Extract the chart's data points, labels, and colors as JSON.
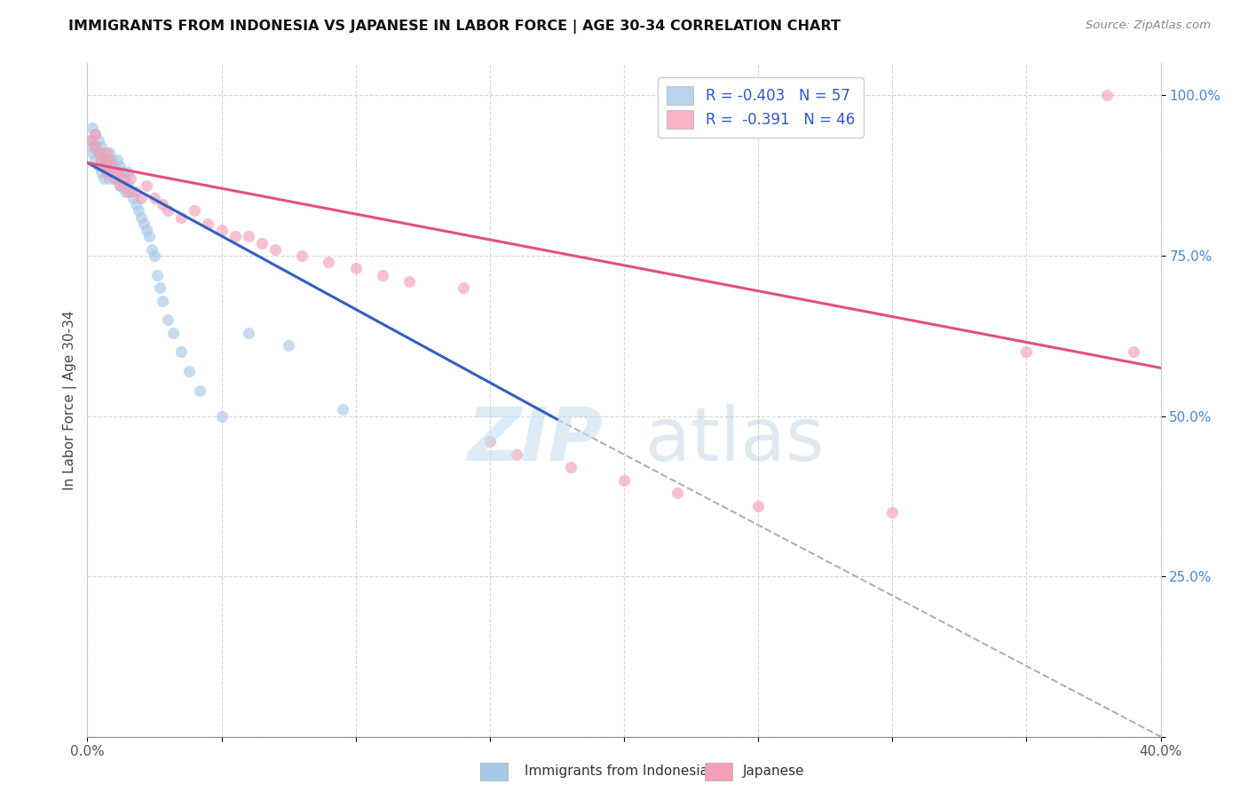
{
  "title": "IMMIGRANTS FROM INDONESIA VS JAPANESE IN LABOR FORCE | AGE 30-34 CORRELATION CHART",
  "source": "Source: ZipAtlas.com",
  "ylabel": "In Labor Force | Age 30-34",
  "xlim": [
    0.0,
    0.4
  ],
  "ylim": [
    0.0,
    1.05
  ],
  "R1": -0.403,
  "N1": 57,
  "R2": -0.391,
  "N2": 46,
  "color_blue": "#a8c8e8",
  "color_pink": "#f4a0b8",
  "line_color_blue": "#3060c0",
  "line_color_pink": "#e05080",
  "line_color_dashed": "#b0b0b0",
  "indonesia_x": [
    0.001,
    0.002,
    0.002,
    0.002,
    0.003,
    0.003,
    0.003,
    0.004,
    0.004,
    0.004,
    0.005,
    0.005,
    0.005,
    0.006,
    0.006,
    0.006,
    0.007,
    0.007,
    0.008,
    0.008,
    0.008,
    0.009,
    0.009,
    0.01,
    0.01,
    0.011,
    0.011,
    0.012,
    0.012,
    0.013,
    0.013,
    0.014,
    0.014,
    0.015,
    0.015,
    0.016,
    0.017,
    0.018,
    0.019,
    0.02,
    0.021,
    0.022,
    0.023,
    0.024,
    0.025,
    0.026,
    0.027,
    0.028,
    0.03,
    0.032,
    0.035,
    0.038,
    0.042,
    0.05,
    0.06,
    0.075,
    0.095
  ],
  "indonesia_y": [
    0.93,
    0.95,
    0.92,
    0.91,
    0.94,
    0.92,
    0.9,
    0.93,
    0.91,
    0.89,
    0.92,
    0.9,
    0.88,
    0.91,
    0.89,
    0.87,
    0.9,
    0.88,
    0.91,
    0.89,
    0.87,
    0.9,
    0.88,
    0.89,
    0.87,
    0.9,
    0.88,
    0.86,
    0.89,
    0.88,
    0.86,
    0.87,
    0.85,
    0.88,
    0.86,
    0.85,
    0.84,
    0.83,
    0.82,
    0.81,
    0.8,
    0.79,
    0.78,
    0.76,
    0.75,
    0.72,
    0.7,
    0.68,
    0.65,
    0.63,
    0.6,
    0.57,
    0.54,
    0.5,
    0.63,
    0.61,
    0.51
  ],
  "japanese_x": [
    0.002,
    0.003,
    0.003,
    0.004,
    0.005,
    0.006,
    0.007,
    0.007,
    0.008,
    0.009,
    0.01,
    0.011,
    0.012,
    0.013,
    0.015,
    0.016,
    0.018,
    0.02,
    0.022,
    0.025,
    0.028,
    0.03,
    0.035,
    0.04,
    0.045,
    0.05,
    0.055,
    0.06,
    0.065,
    0.07,
    0.08,
    0.09,
    0.1,
    0.11,
    0.12,
    0.14,
    0.15,
    0.16,
    0.18,
    0.2,
    0.22,
    0.25,
    0.3,
    0.35,
    0.38,
    0.39
  ],
  "japanese_y": [
    0.93,
    0.94,
    0.92,
    0.91,
    0.9,
    0.89,
    0.91,
    0.88,
    0.9,
    0.89,
    0.87,
    0.88,
    0.86,
    0.87,
    0.85,
    0.87,
    0.85,
    0.84,
    0.86,
    0.84,
    0.83,
    0.82,
    0.81,
    0.82,
    0.8,
    0.79,
    0.78,
    0.78,
    0.77,
    0.76,
    0.75,
    0.74,
    0.73,
    0.72,
    0.71,
    0.7,
    0.46,
    0.44,
    0.42,
    0.4,
    0.38,
    0.36,
    0.35,
    0.6,
    1.0,
    0.6
  ],
  "blue_line_x": [
    0.0,
    0.175
  ],
  "blue_line_y": [
    0.895,
    0.495
  ],
  "pink_line_x": [
    0.0,
    0.4
  ],
  "pink_line_y": [
    0.895,
    0.575
  ],
  "dash_line_x": [
    0.175,
    0.4
  ],
  "dash_line_y": [
    0.495,
    0.0
  ]
}
